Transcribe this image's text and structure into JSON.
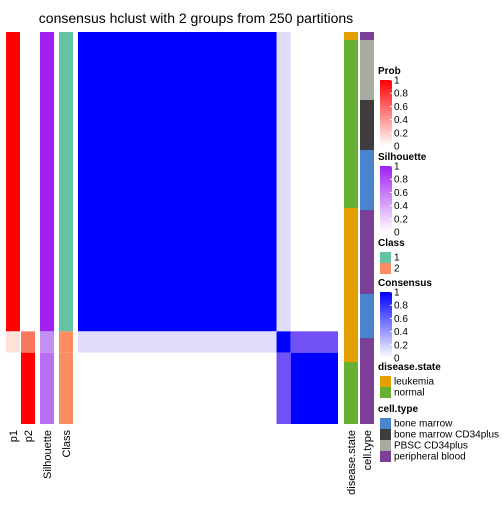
{
  "chart_data": {
    "type": "heatmap",
    "title": "consensus hclust with 2 groups from 250 partitions",
    "row_groups": [
      {
        "key": "g1",
        "size": 84
      },
      {
        "key": "g2",
        "size": 6
      },
      {
        "key": "g3",
        "size": 20
      }
    ],
    "column_annotations": [
      {
        "label": "p1",
        "color_by_group": {
          "g1": "#ff0000",
          "g2": "#fde2d8",
          "g3": "#ffffff"
        }
      },
      {
        "label": "p2",
        "color_by_group": {
          "g1": "#ffffff",
          "g2": "#f9775c",
          "g3": "#ff0000"
        }
      },
      {
        "label": "Silhouette",
        "color_by_group": {
          "g1": "#a020f0",
          "g2": "#c290f5",
          "g3": "#b870f3"
        }
      },
      {
        "label": "Class",
        "color_by_group": {
          "g1": "#66c2a5",
          "g2": "#fc8d62",
          "g3": "#fc8d62"
        }
      }
    ],
    "consensus_matrix": {
      "cells": [
        {
          "rows": "g1",
          "cols": "g1",
          "value": 1.0,
          "color": "#0000ff"
        },
        {
          "rows": "g1",
          "cols": "g2",
          "value": 0.15,
          "color": "#e2dcfc"
        },
        {
          "rows": "g1",
          "cols": "g3",
          "value": 0.0,
          "color": "#ffffff"
        },
        {
          "rows": "g2",
          "cols": "g1",
          "value": 0.15,
          "color": "#e2dcfc"
        },
        {
          "rows": "g2",
          "cols": "g2",
          "value": 0.95,
          "color": "#0000ff"
        },
        {
          "rows": "g2",
          "cols": "g3",
          "value": 0.65,
          "color": "#7150f5"
        },
        {
          "rows": "g3",
          "cols": "g1",
          "value": 0.0,
          "color": "#ffffff"
        },
        {
          "rows": "g3",
          "cols": "g2",
          "value": 0.65,
          "color": "#7150f5"
        },
        {
          "rows": "g3",
          "cols": "g3",
          "value": 1.0,
          "color": "#0000ff"
        }
      ]
    },
    "right_annotations": [
      {
        "label": "disease.state",
        "segments": [
          {
            "start": 0,
            "size": 8,
            "color": "#e69f00"
          },
          {
            "start": 8,
            "size": 168,
            "color": "#66b033"
          },
          {
            "start": 176,
            "size": 154,
            "color": "#e69f00"
          },
          {
            "start": 330,
            "size": 62,
            "color": "#66b033"
          }
        ]
      },
      {
        "label": "cell.type",
        "segments": [
          {
            "start": 0,
            "size": 8,
            "color": "#7b3f98"
          },
          {
            "start": 8,
            "size": 60,
            "color": "#a8aca0"
          },
          {
            "start": 68,
            "size": 50,
            "color": "#3d3d3d"
          },
          {
            "start": 118,
            "size": 60,
            "color": "#4a84cc"
          },
          {
            "start": 178,
            "size": 84,
            "color": "#7b3f98"
          },
          {
            "start": 262,
            "size": 44,
            "color": "#4a84cc"
          },
          {
            "start": 306,
            "size": 86,
            "color": "#7b3f98"
          }
        ]
      }
    ],
    "legends": [
      {
        "title": "Prob",
        "kind": "gradient",
        "from": "#ffffff",
        "to": "#ff0000",
        "ticks": [
          "1",
          "0.8",
          "0.6",
          "0.4",
          "0.2",
          "0"
        ]
      },
      {
        "title": "Silhouette",
        "kind": "gradient",
        "from": "#ffffff",
        "to": "#a020f0",
        "ticks": [
          "1",
          "0.8",
          "0.6",
          "0.4",
          "0.2",
          "0"
        ]
      },
      {
        "title": "Class",
        "kind": "discrete",
        "items": [
          {
            "label": "1",
            "color": "#66c2a5"
          },
          {
            "label": "2",
            "color": "#fc8d62"
          }
        ]
      },
      {
        "title": "Consensus",
        "kind": "gradient",
        "from": "#ffffff",
        "to": "#0000ff",
        "ticks": [
          "1",
          "0.8",
          "0.6",
          "0.4",
          "0.2",
          "0"
        ]
      },
      {
        "title": "disease.state",
        "kind": "discrete",
        "items": [
          {
            "label": "leukemia",
            "color": "#e69f00"
          },
          {
            "label": "normal",
            "color": "#66b033"
          }
        ]
      },
      {
        "title": "cell.type",
        "kind": "discrete",
        "items": [
          {
            "label": "bone marrow",
            "color": "#4a84cc"
          },
          {
            "label": "bone marrow CD34plus",
            "color": "#3d3d3d"
          },
          {
            "label": "PBSC CD34plus",
            "color": "#a8aca0"
          },
          {
            "label": "peripheral blood",
            "color": "#7b3f98"
          }
        ]
      }
    ]
  }
}
